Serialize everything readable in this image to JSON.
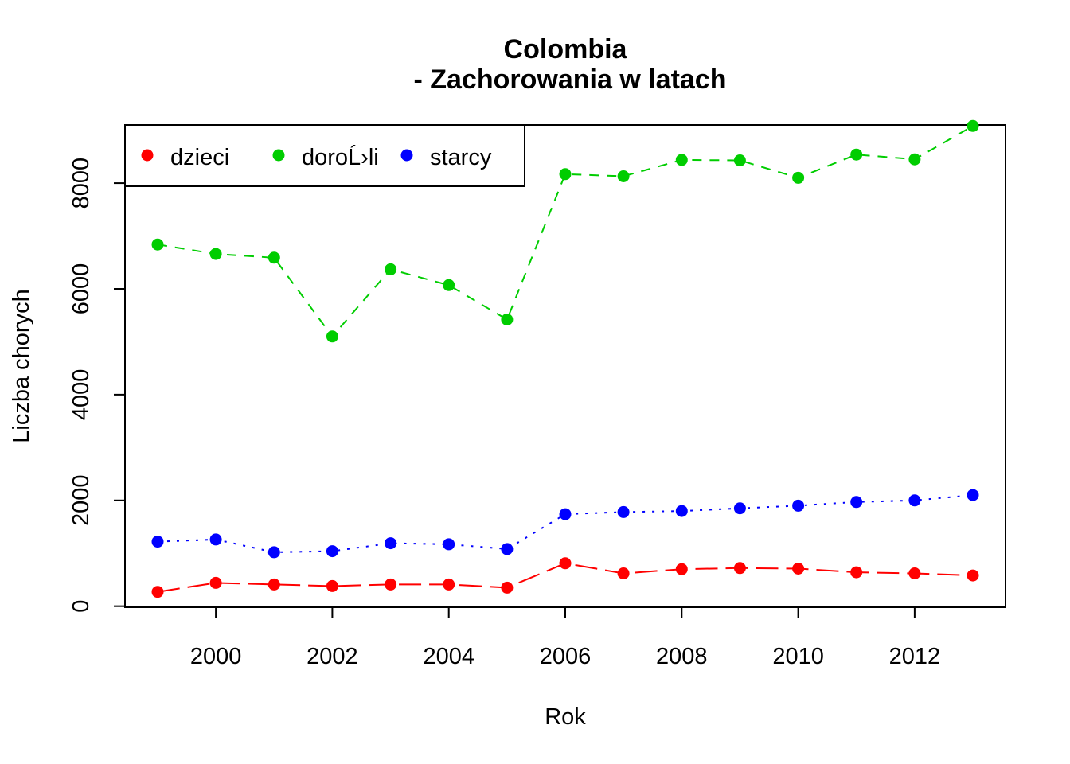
{
  "chart_data": {
    "type": "line",
    "title": [
      "Colombia",
      "- Zachorowania w latach"
    ],
    "xlabel": "Rok",
    "ylabel": "Liczba chorych",
    "x": [
      1999,
      2000,
      2001,
      2002,
      2003,
      2004,
      2005,
      2006,
      2007,
      2008,
      2009,
      2010,
      2011,
      2012,
      2013
    ],
    "xlim": [
      1998.44,
      2013.56
    ],
    "ylim": [
      -20,
      9100
    ],
    "xticks": [
      2000,
      2002,
      2004,
      2006,
      2008,
      2010,
      2012
    ],
    "yticks": [
      0,
      2000,
      4000,
      6000,
      8000
    ],
    "legend_position": "top-left",
    "series": [
      {
        "name": "dzieci",
        "color": "#ff0000",
        "line_style": "longdash",
        "values": [
          270,
          440,
          410,
          380,
          410,
          410,
          350,
          810,
          620,
          700,
          720,
          710,
          640,
          620,
          580
        ]
      },
      {
        "name": "doroĹ›li",
        "color": "#00cd00",
        "line_style": "dashed",
        "values": [
          6840,
          6660,
          6590,
          5100,
          6370,
          6070,
          5420,
          8170,
          8130,
          8440,
          8430,
          8100,
          8540,
          8450,
          9080
        ]
      },
      {
        "name": "starcy",
        "color": "#0000ff",
        "line_style": "dotted",
        "values": [
          1220,
          1260,
          1020,
          1040,
          1190,
          1170,
          1080,
          1740,
          1780,
          1800,
          1850,
          1900,
          1970,
          2000,
          2100
        ]
      }
    ]
  }
}
